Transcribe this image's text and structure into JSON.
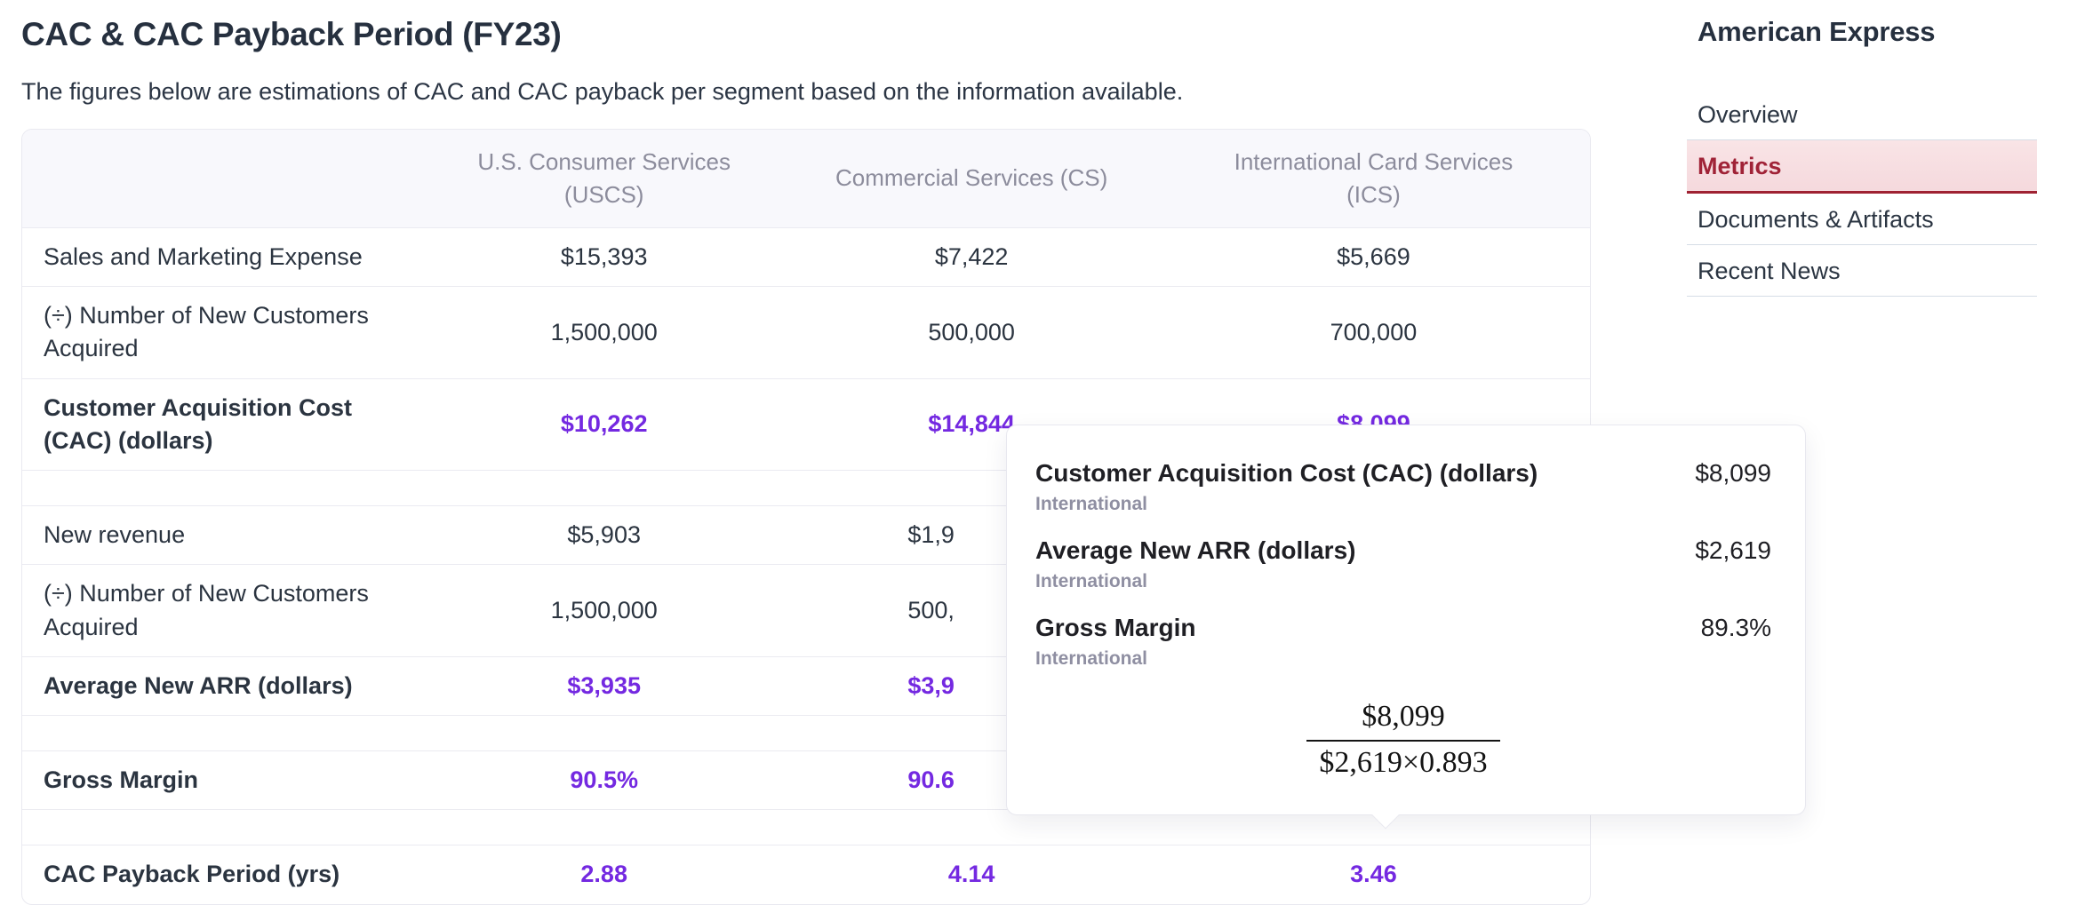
{
  "page": {
    "title": "CAC & CAC Payback Period (FY23)",
    "subtitle": "The figures below are estimations of CAC and CAC payback per segment based on the information available."
  },
  "table": {
    "columns": [
      "",
      "U.S. Consumer Services (USCS)",
      "Commercial Services (CS)",
      "International Card Services (ICS)"
    ],
    "rows": [
      {
        "label": "Sales and Marketing Expense",
        "values": [
          "$15,393",
          "$7,422",
          "$5,669"
        ]
      },
      {
        "label": "(÷) Number of New Customers Acquired",
        "values": [
          "1,500,000",
          "500,000",
          "700,000"
        ]
      },
      {
        "label": "Customer Acquisition Cost (CAC) (dollars)",
        "values": [
          "$10,262",
          "$14,844",
          "$8,099"
        ]
      },
      {
        "spacer": true
      },
      {
        "label": "New revenue",
        "values": [
          "$5,903",
          "$1,9",
          ""
        ]
      },
      {
        "label": "(÷) Number of New Customers Acquired",
        "values": [
          "1,500,000",
          "500,",
          ""
        ]
      },
      {
        "label": "Average New ARR (dollars)",
        "values": [
          "$3,935",
          "$3,9",
          ""
        ]
      },
      {
        "spacer": true
      },
      {
        "label": "Gross Margin",
        "values": [
          "90.5%",
          "90.6",
          ""
        ]
      },
      {
        "spacer": true
      },
      {
        "label": "CAC Payback Period (yrs)",
        "values": [
          "2.88",
          "4.14",
          "3.46"
        ]
      }
    ]
  },
  "tooltip": {
    "entries": [
      {
        "label": "Customer Acquisition Cost (CAC) (dollars)",
        "segment": "International",
        "value": "$8,099"
      },
      {
        "label": "Average New ARR (dollars)",
        "segment": "International",
        "value": "$2,619"
      },
      {
        "label": "Gross Margin",
        "segment": "International",
        "value": "89.3%"
      }
    ],
    "formula": {
      "numerator": "$8,099",
      "denominator": "$2,619×0.893"
    }
  },
  "sidebar": {
    "title": "American Express",
    "items": [
      {
        "label": "Overview",
        "active": false
      },
      {
        "label": "Metrics",
        "active": true
      },
      {
        "label": "Documents & Artifacts",
        "active": false
      },
      {
        "label": "Recent News",
        "active": false
      }
    ]
  },
  "colors": {
    "accent_purple": "#7429e1",
    "active_red": "#a02337",
    "text_navy": "#26303f",
    "header_gray": "#8c8c9c",
    "segment_gray": "#8f8fa2"
  }
}
